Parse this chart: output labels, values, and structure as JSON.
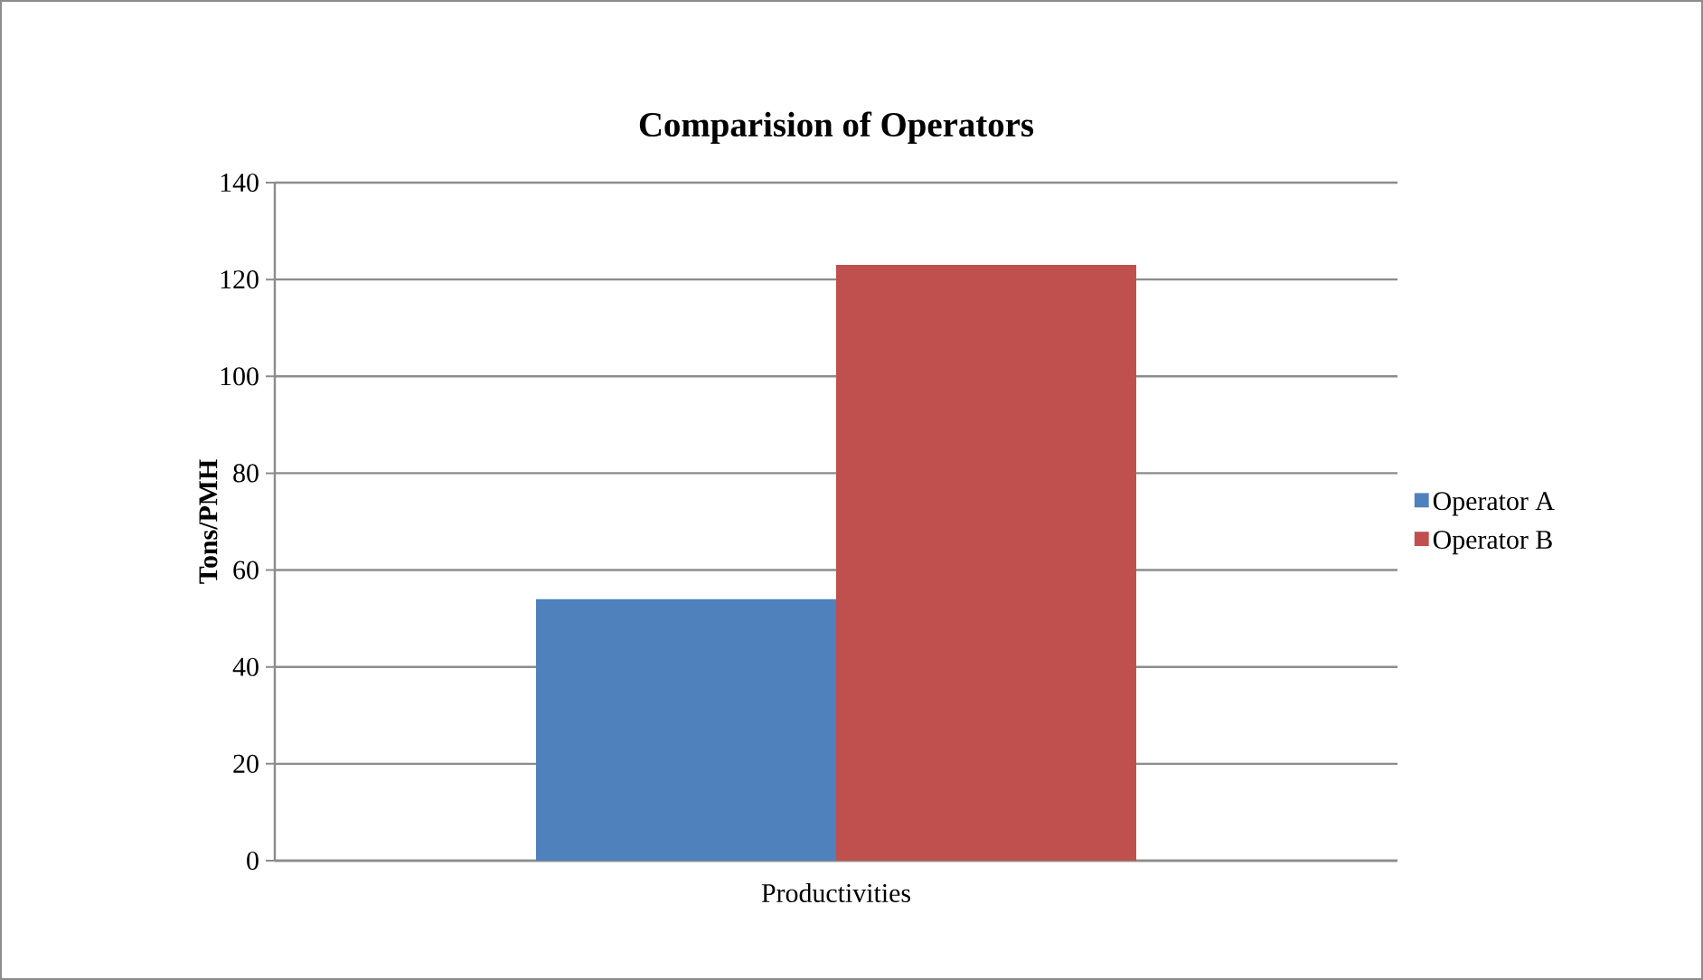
{
  "chart_data": {
    "type": "bar",
    "title": "Comparision of Operators",
    "ylabel": "Tons/PMH",
    "categories": [
      "Productivities"
    ],
    "series": [
      {
        "name": "Operator A",
        "color": "#4f81bd",
        "values": [
          54
        ]
      },
      {
        "name": "Operator B",
        "color": "#c0504d",
        "values": [
          123
        ]
      }
    ],
    "ylim": [
      0,
      140
    ],
    "yticks": [
      0,
      20,
      40,
      60,
      80,
      100,
      120,
      140
    ],
    "grid": "y",
    "legend": "right"
  }
}
